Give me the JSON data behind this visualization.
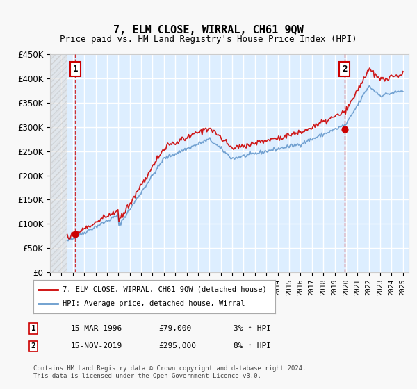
{
  "title": "7, ELM CLOSE, WIRRAL, CH61 9QW",
  "subtitle": "Price paid vs. HM Land Registry's House Price Index (HPI)",
  "ylabel": "",
  "xlabel": "",
  "ylim": [
    0,
    450000
  ],
  "yticks": [
    0,
    50000,
    100000,
    150000,
    200000,
    250000,
    300000,
    350000,
    400000,
    450000
  ],
  "ytick_labels": [
    "£0",
    "£50K",
    "£100K",
    "£150K",
    "£200K",
    "£250K",
    "£300K",
    "£350K",
    "£400K",
    "£450K"
  ],
  "xlim_start": 1994.0,
  "xlim_end": 2025.5,
  "hatch_end": 1995.5,
  "sale1_date": 1996.21,
  "sale1_price": 79000,
  "sale1_label": "1",
  "sale2_date": 2019.88,
  "sale2_price": 295000,
  "sale2_label": "2",
  "legend_line1": "7, ELM CLOSE, WIRRAL, CH61 9QW (detached house)",
  "legend_line2": "HPI: Average price, detached house, Wirral",
  "table_row1": [
    "1",
    "15-MAR-1996",
    "£79,000",
    "3% ↑ HPI"
  ],
  "table_row2": [
    "2",
    "15-NOV-2019",
    "£295,000",
    "8% ↑ HPI"
  ],
  "footer": "Contains HM Land Registry data © Crown copyright and database right 2024.\nThis data is licensed under the Open Government Licence v3.0.",
  "price_color": "#cc0000",
  "hpi_color": "#6699cc",
  "bg_color": "#ddeeff",
  "plot_bg": "#ddeeff",
  "hatch_color": "#cccccc",
  "grid_color": "#ffffff",
  "vline_color": "#cc0000"
}
